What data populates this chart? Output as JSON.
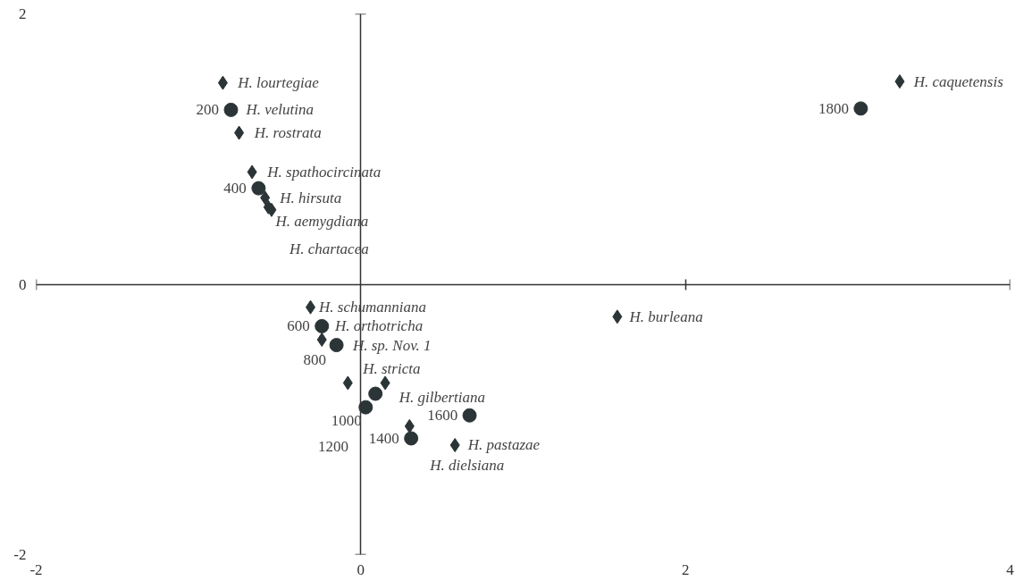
{
  "chart_data": {
    "type": "scatter",
    "xlim": [
      -2,
      4
    ],
    "ylim": [
      -2,
      2
    ],
    "xticks": [
      -2,
      0,
      2,
      4
    ],
    "yticks": [
      -2,
      0,
      2
    ],
    "series": [
      {
        "color": "#2b3436",
        "marker": "diamond",
        "x": [
          -0.85,
          -0.75,
          -0.67,
          -0.59,
          -0.57,
          -0.55,
          3.32,
          -0.31,
          -0.24,
          -0.08,
          0.15,
          0.3,
          0.58,
          1.58
        ],
        "values": [
          1.49,
          1.12,
          0.83,
          0.64,
          0.57,
          0.55,
          1.5,
          -0.17,
          -0.41,
          -0.73,
          -0.73,
          -1.05,
          -1.19,
          -0.24
        ]
      },
      {
        "color": "#2b3436",
        "marker": "circle",
        "x": [
          -0.8,
          -0.63,
          -0.24,
          -0.15,
          0.09,
          0.03,
          0.31,
          0.67,
          3.08
        ],
        "values": [
          1.29,
          0.71,
          -0.31,
          -0.45,
          -0.81,
          -0.91,
          -1.14,
          -0.97,
          1.3
        ]
      }
    ],
    "annotations": [
      {
        "text": "H. lourtegiae",
        "x": -0.85,
        "y": 1.49
      },
      {
        "text": "H. velutina",
        "x": -0.8,
        "y": 1.29
      },
      {
        "text": "H. rostrata",
        "x": -0.75,
        "y": 1.12
      },
      {
        "text": "H. spathocircinata",
        "x": -0.67,
        "y": 0.83
      },
      {
        "text": "H. hirsuta",
        "x": -0.59,
        "y": 0.64
      },
      {
        "text": "H. aemygdiana",
        "x": -0.57,
        "y": 0.57
      },
      {
        "text": "H. chartacea",
        "x": -0.55,
        "y": 0.55
      },
      {
        "text": "H. caquetensis",
        "x": 3.32,
        "y": 1.5
      },
      {
        "text": "H. burleana",
        "x": 1.58,
        "y": -0.24
      },
      {
        "text": "H. schumanniana",
        "x": -0.31,
        "y": -0.17
      },
      {
        "text": "H. orthotricha",
        "x": -0.24,
        "y": -0.41
      },
      {
        "text": "H. sp. Nov. 1",
        "x": -0.15,
        "y": -0.45
      },
      {
        "text": "H. stricta",
        "x": -0.08,
        "y": -0.73
      },
      {
        "text": "H. gilbertiana",
        "x": 0.15,
        "y": -0.73
      },
      {
        "text": "H. dielsiana",
        "x": 0.3,
        "y": -1.05
      },
      {
        "text": "H. pastazae",
        "x": 0.58,
        "y": -1.19
      },
      {
        "text": "200",
        "x": -0.8,
        "y": 1.29
      },
      {
        "text": "400",
        "x": -0.63,
        "y": 0.71
      },
      {
        "text": "600",
        "x": -0.24,
        "y": -0.31
      },
      {
        "text": "800",
        "x": -0.15,
        "y": -0.45
      },
      {
        "text": "1000",
        "x": 0.09,
        "y": -0.81
      },
      {
        "text": "1200",
        "x": 0.03,
        "y": -0.91
      },
      {
        "text": "1400",
        "x": 0.31,
        "y": -1.14
      },
      {
        "text": "1600",
        "x": 0.67,
        "y": -0.97
      },
      {
        "text": "1800",
        "x": 3.08,
        "y": 1.3
      }
    ]
  }
}
